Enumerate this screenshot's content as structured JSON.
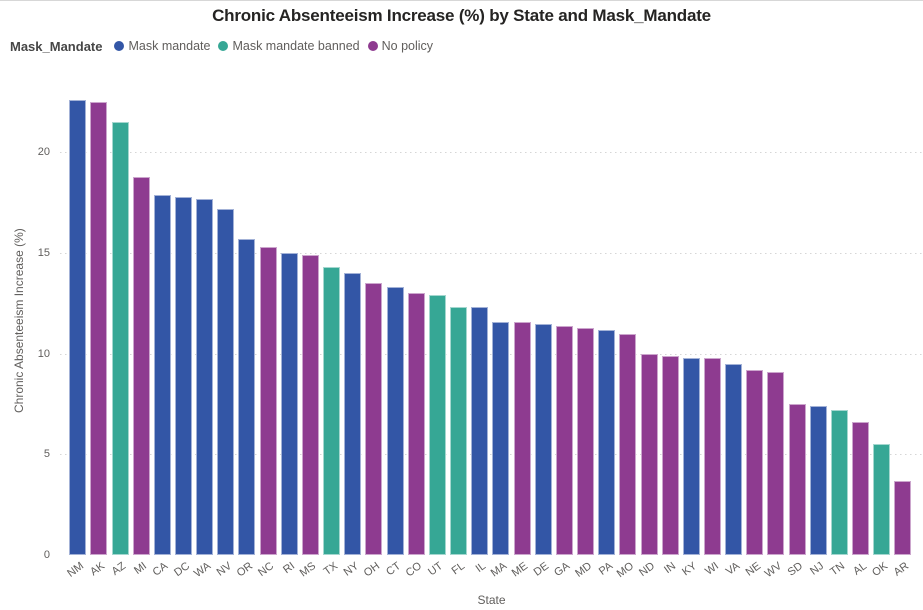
{
  "chart_data": {
    "type": "bar",
    "title": "Chronic Absenteeism Increase (%) by State and Mask_Mandate",
    "xlabel": "State",
    "ylabel": "Chronic Absenteeism Increase (%)",
    "ylim": [
      0,
      23.3
    ],
    "yticks": [
      0,
      5,
      10,
      15,
      20
    ],
    "grid": "horizontal-dotted",
    "legend_position": "top-left",
    "legend_title": "Mask_Mandate",
    "legend": [
      {
        "label": "Mask mandate",
        "color": "#3356A6"
      },
      {
        "label": "Mask mandate banned",
        "color": "#36A795"
      },
      {
        "label": "No policy",
        "color": "#8E3B90"
      }
    ],
    "categories": [
      "NM",
      "AK",
      "AZ",
      "MI",
      "CA",
      "DC",
      "WA",
      "NV",
      "OR",
      "NC",
      "RI",
      "MS",
      "TX",
      "NY",
      "OH",
      "CT",
      "CO",
      "UT",
      "FL",
      "IL",
      "MA",
      "ME",
      "DE",
      "GA",
      "MD",
      "PA",
      "MO",
      "ND",
      "IN",
      "KY",
      "WI",
      "VA",
      "NE",
      "WV",
      "SD",
      "NJ",
      "TN",
      "AL",
      "OK",
      "AR"
    ],
    "values": [
      22.6,
      22.5,
      21.5,
      18.8,
      17.9,
      17.8,
      17.7,
      17.2,
      15.7,
      15.3,
      15.0,
      14.9,
      14.3,
      14.0,
      13.5,
      13.3,
      13.0,
      12.9,
      12.3,
      12.3,
      11.6,
      11.6,
      11.5,
      11.4,
      11.3,
      11.2,
      11.0,
      10.0,
      9.9,
      9.8,
      9.8,
      9.5,
      9.2,
      9.1,
      7.5,
      7.4,
      7.2,
      6.6,
      5.5,
      3.7
    ],
    "groups": [
      "Mask mandate",
      "No policy",
      "Mask mandate banned",
      "No policy",
      "Mask mandate",
      "Mask mandate",
      "Mask mandate",
      "Mask mandate",
      "Mask mandate",
      "No policy",
      "Mask mandate",
      "No policy",
      "Mask mandate banned",
      "Mask mandate",
      "No policy",
      "Mask mandate",
      "No policy",
      "Mask mandate banned",
      "Mask mandate banned",
      "Mask mandate",
      "Mask mandate",
      "No policy",
      "Mask mandate",
      "No policy",
      "No policy",
      "Mask mandate",
      "No policy",
      "No policy",
      "No policy",
      "Mask mandate",
      "No policy",
      "Mask mandate",
      "No policy",
      "No policy",
      "No policy",
      "Mask mandate",
      "Mask mandate banned",
      "No policy",
      "Mask mandate banned",
      "No policy"
    ]
  },
  "colors": {
    "title_text": "#252423",
    "axis_text": "#605e5c",
    "gridline": "#d6d6d6"
  }
}
